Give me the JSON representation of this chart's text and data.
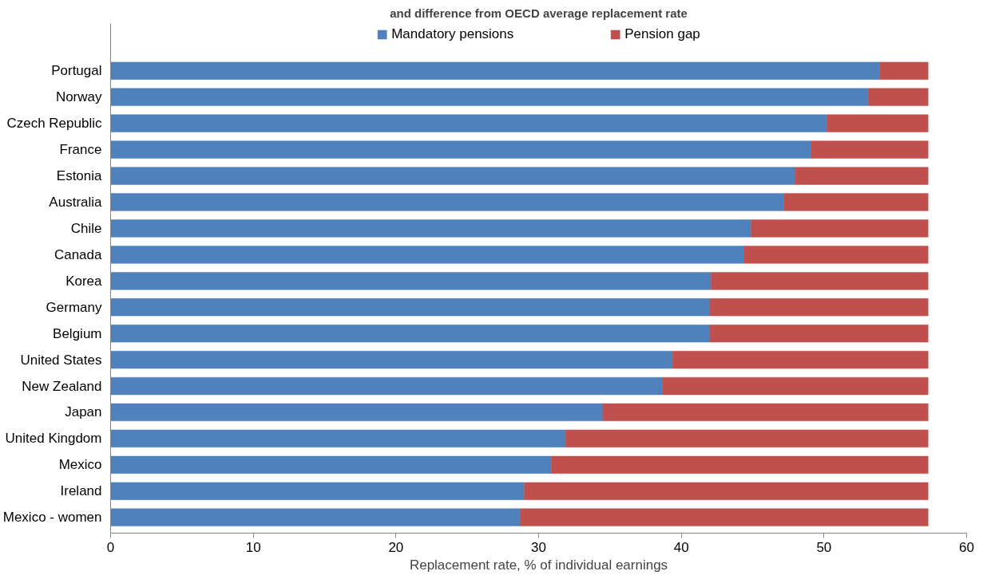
{
  "chart_data": {
    "type": "bar",
    "orientation": "horizontal",
    "stacked": true,
    "title": "and difference from OECD average replacement rate",
    "xlabel": "Replacement rate, % of individual earnings",
    "categories": [
      "Portugal",
      "Norway",
      "Czech Republic",
      "France",
      "Estonia",
      "Australia",
      "Chile",
      "Canada",
      "Korea",
      "Germany",
      "Belgium",
      "United States",
      "New Zealand",
      "Japan",
      "United Kingdom",
      "Mexico",
      "Ireland",
      "Mexico - women"
    ],
    "series": [
      {
        "name": "Mandatory pensions",
        "color": "#4f81bd",
        "values": [
          53.9,
          53.1,
          50.2,
          49.1,
          48.0,
          47.2,
          44.9,
          44.4,
          42.1,
          42.0,
          42.0,
          39.4,
          38.7,
          34.5,
          31.9,
          30.9,
          29.0,
          28.7
        ]
      },
      {
        "name": "Pension gap",
        "color": "#c0504d",
        "values": [
          3.4,
          4.2,
          7.1,
          8.2,
          9.3,
          10.1,
          12.4,
          12.9,
          15.2,
          15.3,
          15.3,
          17.9,
          18.6,
          22.8,
          25.4,
          26.4,
          28.3,
          28.6
        ]
      }
    ],
    "xlim": [
      0,
      60
    ],
    "xticks": [
      0,
      10,
      20,
      30,
      40,
      50,
      60
    ],
    "grid": false,
    "legend": "top"
  }
}
